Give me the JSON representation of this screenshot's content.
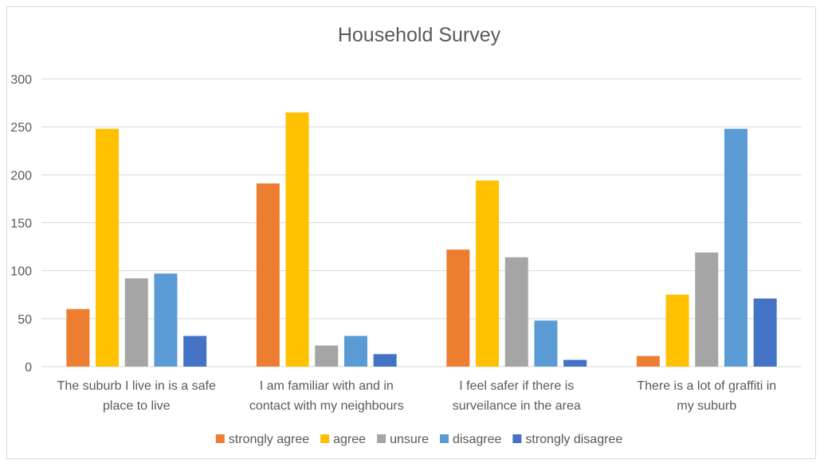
{
  "chart_data": {
    "type": "bar",
    "title": "Household Survey",
    "xlabel": "",
    "ylabel": "",
    "ylim": [
      0,
      300
    ],
    "yticks": [
      0,
      50,
      100,
      150,
      200,
      250,
      300
    ],
    "grid": true,
    "legend_position": "bottom",
    "categories": [
      [
        "The suburb I live in is a safe",
        "place to live"
      ],
      [
        "I am familiar with and in",
        "contact with my neighbours"
      ],
      [
        "I feel safer if there is",
        "surveilance in the area"
      ],
      [
        "There is a lot of graffiti in",
        "my suburb"
      ]
    ],
    "series": [
      {
        "name": "strongly agree",
        "color": "#ED7D31",
        "values": [
          60,
          191,
          122,
          11
        ]
      },
      {
        "name": "agree",
        "color": "#FFC000",
        "values": [
          248,
          265,
          194,
          75
        ]
      },
      {
        "name": "unsure",
        "color": "#A5A5A5",
        "values": [
          92,
          22,
          114,
          119
        ]
      },
      {
        "name": "disagree",
        "color": "#5B9BD5",
        "values": [
          97,
          32,
          48,
          248
        ]
      },
      {
        "name": "strongly disagree",
        "color": "#4472C4",
        "values": [
          32,
          13,
          7,
          71
        ]
      }
    ]
  }
}
